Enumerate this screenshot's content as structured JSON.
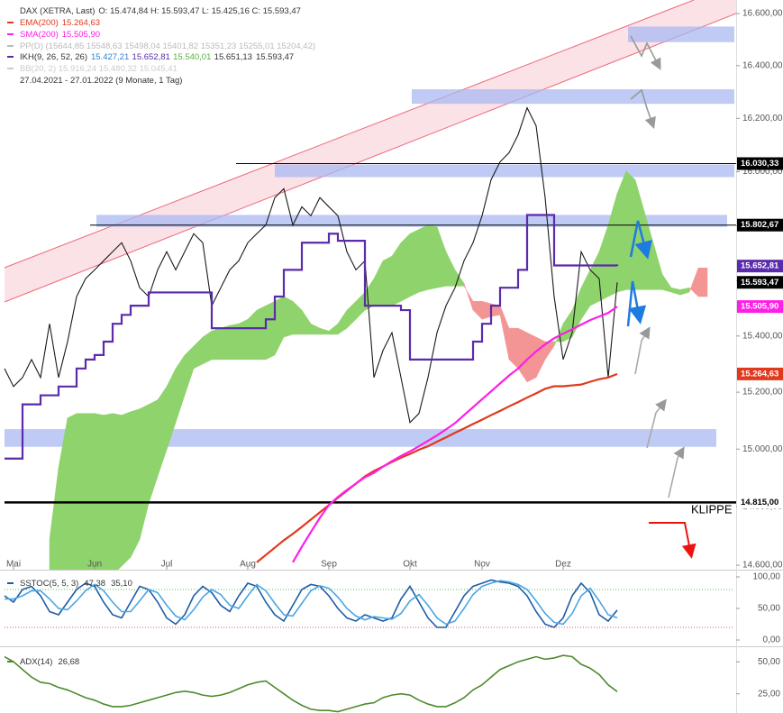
{
  "chart_data": [
    {
      "type": "line",
      "log_scale": true,
      "info": [
        {
          "text": "PP(D)  (15644,85  15548,63  15498,04  15401,82  15351,23  15255,01  15204,42)",
          "color": "#bbbbbb"
        },
        {
          "text": "BB(20, 2)  15.916,24  15.480,32  15.045,41",
          "color": "#cccccc"
        },
        {
          "text": "27.04.2021 - 27.01.2022   (9 Monate, 1 Tag)",
          "color": "#333333"
        }
      ],
      "ylim": [
        14585,
        16635
      ],
      "yticks": [
        {
          "value": 14600,
          "label": "14.600,00"
        },
        {
          "value": 14800,
          "label": "14.800,00"
        },
        {
          "value": 15000,
          "label": "15.000,00"
        },
        {
          "value": 15200,
          "label": "15.200,00"
        },
        {
          "value": 15400,
          "label": "15.400,00"
        },
        {
          "value": 15600,
          "label": "15.600,00"
        },
        {
          "value": 15800,
          "label": "15.800,00"
        },
        {
          "value": 16000,
          "label": "16.000,00"
        },
        {
          "value": 16200,
          "label": "16.200,00"
        },
        {
          "value": 16400,
          "label": "16.400,00"
        },
        {
          "value": 16600,
          "label": "16.600,00"
        }
      ],
      "categories": [
        null,
        "Mai",
        null,
        null,
        null,
        null,
        null,
        null,
        null,
        null,
        "Jun",
        null,
        null,
        null,
        null,
        null,
        null,
        null,
        "Jul",
        null,
        null,
        null,
        null,
        null,
        null,
        null,
        null,
        "Aug",
        null,
        null,
        null,
        null,
        null,
        null,
        null,
        null,
        "Sep",
        null,
        null,
        null,
        null,
        null,
        null,
        null,
        null,
        "Okt",
        null,
        null,
        null,
        null,
        null,
        null,
        null,
        "Nov",
        null,
        null,
        null,
        null,
        null,
        null,
        null,
        null,
        "Dez",
        null,
        null,
        null,
        null,
        null,
        null,
        null,
        null,
        null,
        null,
        null,
        null,
        null,
        null,
        null,
        null
      ],
      "series": [
        {
          "name": "DAX (XETRA, Last)",
          "ohlc_label": "O: 15.474,84  H: 15.593,47  L: 15.425,16  C: 15.593,47",
          "color": "#1a1a1a",
          "values": [
            15284,
            15220,
            15252,
            15316,
            15252,
            15444,
            15252,
            15380,
            15542,
            15607,
            15639,
            15672,
            15705,
            15738,
            15672,
            15574,
            15542,
            15639,
            15705,
            15639,
            15705,
            15771,
            15738,
            15509,
            15574,
            15639,
            15672,
            15738,
            15771,
            15803,
            15904,
            15937,
            15803,
            15870,
            15837,
            15904,
            15870,
            15837,
            15705,
            15639,
            15672,
            15252,
            15348,
            15412,
            15252,
            15093,
            15125,
            15252,
            15412,
            15509,
            15574,
            15672,
            15738,
            15837,
            15970,
            16037,
            16071,
            16138,
            16240,
            16172,
            15904,
            15542,
            15316,
            15412,
            15705,
            15639,
            15607,
            15252,
            15593.47,
            null,
            null,
            null,
            null,
            null,
            null,
            null,
            null,
            null,
            null
          ]
        },
        {
          "name": "EMA(200)",
          "last_label": "15.264,63",
          "color": "#e03a1e",
          "values": [
            null,
            null,
            null,
            null,
            null,
            null,
            null,
            null,
            null,
            null,
            null,
            null,
            null,
            null,
            null,
            null,
            null,
            null,
            null,
            null,
            null,
            null,
            null,
            null,
            null,
            null,
            null,
            null,
            14610,
            14635,
            14660,
            14685,
            14707,
            14731,
            14756,
            14781,
            14806,
            14831,
            14855,
            14880,
            14905,
            14924,
            14939,
            14955,
            14970,
            14983,
            14998,
            15010,
            15026,
            15041,
            15057,
            15072,
            15088,
            15103,
            15119,
            15134,
            15150,
            15165,
            15181,
            15196,
            15212,
            15221,
            15221,
            15224,
            15227,
            15237,
            15246,
            15252,
            15264.63,
            null,
            null,
            null,
            null,
            null,
            null,
            null,
            null,
            null,
            null
          ]
        },
        {
          "name": "SMA(200)",
          "last_label": "15.505,90",
          "color": "#ff1ee6",
          "values": [
            null,
            null,
            null,
            null,
            null,
            null,
            null,
            null,
            null,
            null,
            null,
            null,
            null,
            null,
            null,
            null,
            null,
            null,
            null,
            null,
            null,
            null,
            null,
            null,
            null,
            null,
            null,
            null,
            null,
            null,
            null,
            null,
            14610,
            14663,
            14713,
            14762,
            14806,
            14834,
            14858,
            14880,
            14902,
            14917,
            14939,
            14958,
            14976,
            14992,
            15010,
            15029,
            15048,
            15069,
            15091,
            15119,
            15147,
            15175,
            15203,
            15231,
            15259,
            15284,
            15316,
            15345,
            15370,
            15392,
            15408,
            15424,
            15441,
            15457,
            15470,
            15483,
            15505.9,
            null,
            null,
            null,
            null,
            null,
            null,
            null,
            null,
            null,
            null
          ]
        },
        {
          "name": "IKH(9, 26, 52, 26)",
          "step": true,
          "color": "#5a2bab",
          "labels": [
            {
              "text": "15.427,21",
              "color": "#2f7fd0"
            },
            {
              "text": "15.652,81",
              "color": "#5a2bab"
            },
            {
              "text": "15.540,01",
              "color": "#58b03a"
            },
            {
              "text": "15.651,13",
              "color": "#333333"
            },
            {
              "text": "15.593,47",
              "color": "#333333"
            }
          ],
          "values": [
            14967,
            14967,
            15157,
            15157,
            15189,
            15189,
            15220,
            15220,
            15284,
            15316,
            15332,
            15380,
            15444,
            15476,
            15509,
            15509,
            15557,
            15557,
            15557,
            15557,
            15557,
            15557,
            15557,
            15428,
            15428,
            15428,
            15428,
            15428,
            15428,
            15460,
            15542,
            15639,
            15639,
            15738,
            15738,
            15738,
            15771,
            15745,
            15745,
            15745,
            15509,
            15509,
            15509,
            15509,
            15493,
            15316,
            15316,
            15316,
            15316,
            15316,
            15316,
            15316,
            15380,
            15444,
            15509,
            15574,
            15574,
            15639,
            15840,
            15840,
            15840,
            15655,
            15655,
            15655,
            15655,
            15655,
            15655,
            15655,
            15652.81,
            null,
            null,
            null,
            null,
            null,
            null,
            null,
            null,
            null,
            null
          ]
        }
      ],
      "cloud": {
        "up_color": "#8fd36c",
        "down_color": "#f49595",
        "span_a": [
          null,
          null,
          null,
          null,
          null,
          14688,
          14936,
          15109,
          15125,
          15125,
          15125,
          15119,
          15125,
          15119,
          15131,
          15141,
          15157,
          15173,
          15220,
          15284,
          15332,
          15364,
          15396,
          15418,
          15428,
          15438,
          15444,
          15460,
          15493,
          15509,
          15525,
          15542,
          15525,
          15493,
          15444,
          15428,
          15418,
          15444,
          15493,
          15525,
          15558,
          15607,
          15672,
          15689,
          15738,
          15771,
          15787,
          15803,
          15796,
          15705,
          15639,
          15590,
          15493,
          15460,
          15470,
          15476,
          15316,
          15284,
          15236,
          15252,
          15316,
          15364,
          15444,
          15493,
          15574,
          15639,
          15705,
          15803,
          15920,
          16003,
          15970,
          15854,
          15738,
          15623,
          15574,
          15567,
          15574,
          15542,
          15542
        ],
        "span_b": [
          null,
          null,
          null,
          null,
          null,
          14536,
          14536,
          14536,
          14536,
          14536,
          14536,
          14566,
          14566,
          14597,
          14627,
          14688,
          14811,
          14905,
          14998,
          15093,
          15189,
          15284,
          15300,
          15316,
          15316,
          15316,
          15316,
          15316,
          15316,
          15316,
          15332,
          15396,
          15406,
          15406,
          15406,
          15406,
          15406,
          15406,
          15428,
          15460,
          15493,
          15509,
          15509,
          15509,
          15525,
          15542,
          15558,
          15567,
          15574,
          15580,
          15580,
          15580,
          15525,
          15525,
          15516,
          15509,
          15428,
          15428,
          15412,
          15396,
          15380,
          15380,
          15380,
          15396,
          15460,
          15509,
          15525,
          15542,
          15558,
          15567,
          15567,
          15567,
          15567,
          15567,
          15558,
          15548,
          15558,
          15646,
          15646
        ]
      },
      "zones": [
        [
          16490,
          16550
        ],
        [
          16255,
          16310
        ],
        [
          15980,
          16027
        ],
        [
          15796,
          15840
        ],
        [
          15008,
          15070
        ]
      ],
      "levels": [
        {
          "value": 16030.33,
          "label": "16.030,33",
          "bg": "#000000",
          "fg": "#ffffff",
          "line": true
        },
        {
          "value": 15802.67,
          "label": "15.802,67",
          "bg": "#000000",
          "fg": "#ffffff",
          "line": true
        },
        {
          "value": 15652.81,
          "label": "15.652,81",
          "bg": "#5a2bab",
          "fg": "#ffffff",
          "line": false
        },
        {
          "value": 15593.47,
          "label": "15.593,47",
          "bg": "#000000",
          "fg": "#ffffff",
          "line": false
        },
        {
          "value": 15505.9,
          "label": "15.505,90",
          "bg": "#ff1ee6",
          "fg": "#ffffff",
          "line": false
        },
        {
          "value": 15264.63,
          "label": "15.264,63",
          "bg": "#e03a1e",
          "fg": "#ffffff",
          "line": false
        },
        {
          "value": 14815,
          "label": "14.815,00",
          "bg": "#ffffff",
          "fg": "#000000",
          "line": true
        }
      ],
      "annotation": "KLIPPE"
    },
    {
      "type": "line",
      "title": "SSTOC(5, 5, 3)",
      "ylim": [
        -10,
        110
      ],
      "yticks": [
        {
          "value": 0,
          "label": "0,00"
        },
        {
          "value": 50,
          "label": "50,00"
        },
        {
          "value": 100,
          "label": "100,00"
        }
      ],
      "overbought": 80,
      "oversold": 20,
      "series": [
        {
          "name": "%K",
          "last_label": "47,38",
          "color": "#1d5ca6",
          "values": [
            70,
            60,
            80,
            85,
            70,
            45,
            40,
            60,
            80,
            90,
            85,
            60,
            40,
            35,
            60,
            85,
            80,
            60,
            35,
            25,
            40,
            70,
            85,
            75,
            55,
            45,
            70,
            90,
            85,
            60,
            40,
            30,
            55,
            80,
            88,
            85,
            70,
            50,
            35,
            30,
            40,
            35,
            30,
            35,
            65,
            85,
            60,
            35,
            20,
            20,
            45,
            70,
            85,
            90,
            95,
            92,
            90,
            85,
            70,
            45,
            25,
            20,
            35,
            70,
            90,
            75,
            40,
            30,
            47.38
          ]
        },
        {
          "name": "%D",
          "last_label": "35,10",
          "color": "#4aa6e2",
          "values": [
            65,
            65,
            70,
            78,
            78,
            65,
            50,
            48,
            62,
            78,
            88,
            78,
            60,
            45,
            45,
            62,
            80,
            75,
            55,
            38,
            32,
            48,
            68,
            80,
            72,
            55,
            50,
            70,
            88,
            78,
            58,
            40,
            38,
            58,
            78,
            86,
            82,
            68,
            50,
            38,
            32,
            37,
            35,
            33,
            42,
            62,
            72,
            55,
            35,
            25,
            30,
            50,
            72,
            85,
            90,
            94,
            92,
            88,
            80,
            62,
            42,
            28,
            25,
            42,
            70,
            82,
            62,
            40,
            35.1
          ]
        }
      ]
    },
    {
      "type": "line",
      "title": "ADX(14)",
      "ylim": [
        10,
        60
      ],
      "yticks": [
        {
          "value": 25,
          "label": "25,00"
        },
        {
          "value": 50,
          "label": "50,00"
        }
      ],
      "series": [
        {
          "name": "ADX",
          "last_label": "26,68",
          "color": "#4e8a2e",
          "values": [
            54,
            50,
            44,
            38,
            34,
            33,
            30,
            28,
            25,
            22,
            20,
            17,
            15,
            15,
            16,
            18,
            20,
            22,
            24,
            26,
            27,
            26,
            24,
            23,
            24,
            26,
            29,
            32,
            34,
            35,
            30,
            25,
            20,
            16,
            13,
            12,
            12,
            11,
            13,
            15,
            17,
            18,
            22,
            24,
            25,
            24,
            20,
            17,
            15,
            15,
            18,
            22,
            28,
            32,
            38,
            44,
            47,
            50,
            52,
            54,
            52,
            53,
            55,
            54,
            48,
            45,
            40,
            32,
            26.68
          ]
        }
      ]
    }
  ]
}
